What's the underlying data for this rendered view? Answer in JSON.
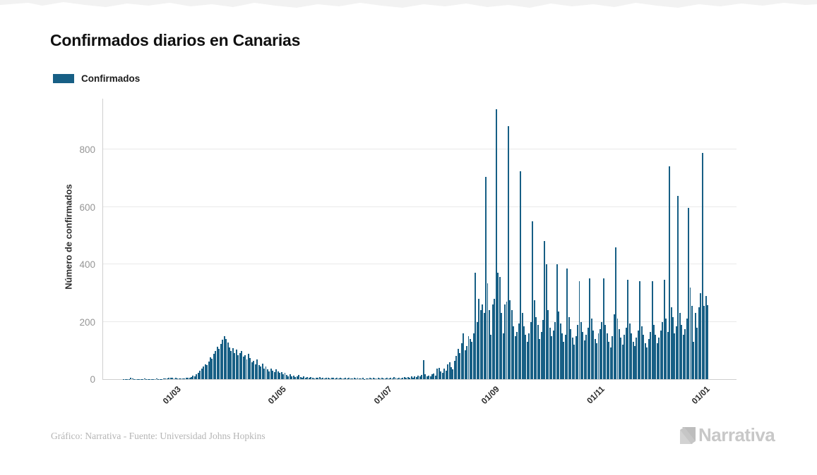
{
  "title": "Confirmados diarios en Canarias",
  "legend": {
    "label": "Confirmados"
  },
  "y_axis": {
    "label": "Número de confirmados"
  },
  "footer": {
    "credit": "Gráfico: Narrativa - Fuente: Universidad Johns Hopkins"
  },
  "logo": {
    "text": "Narrativa"
  },
  "colors": {
    "bar": "#175f85",
    "grid": "#e9e9e9",
    "axis": "#cfcfcf",
    "tick_text": "#959595",
    "x_tick_text": "#2b2b2b",
    "title_text": "#101010",
    "footer_text": "#b5b5b5",
    "logo_text": "#c8c8c8"
  },
  "chart_data": {
    "type": "bar",
    "title": "Confirmados diarios en Canarias",
    "xlabel": "",
    "ylabel": "Número de confirmados",
    "series_name": "Confirmados",
    "ylim": [
      0,
      977
    ],
    "grid": "horizontal",
    "legend_position": "top-left",
    "frequency": "daily",
    "start_date": "2020-01-28",
    "y_ticks": [
      0,
      200,
      400,
      600,
      800
    ],
    "x_tick_labels": [
      "01/03",
      "01/05",
      "01/07",
      "01/09",
      "01/11",
      "01/01"
    ],
    "x_tick_day_indices": [
      33,
      94,
      155,
      217,
      278,
      339
    ],
    "values": [
      0,
      0,
      0,
      1,
      1,
      1,
      1,
      4,
      2,
      1,
      1,
      1,
      1,
      1,
      1,
      2,
      1,
      1,
      1,
      1,
      1,
      1,
      2,
      1,
      1,
      1,
      2,
      3,
      2,
      4,
      5,
      4,
      3,
      4,
      2,
      3,
      2,
      2,
      3,
      5,
      4,
      6,
      8,
      12,
      10,
      16,
      22,
      30,
      38,
      45,
      52,
      48,
      62,
      75,
      70,
      88,
      98,
      112,
      105,
      122,
      138,
      150,
      140,
      128,
      110,
      98,
      108,
      92,
      102,
      84,
      90,
      99,
      78,
      84,
      68,
      88,
      74,
      58,
      64,
      52,
      68,
      48,
      44,
      54,
      38,
      44,
      34,
      28,
      38,
      29,
      24,
      34,
      27,
      21,
      24,
      17,
      21,
      14,
      11,
      17,
      9,
      13,
      8,
      11,
      14,
      8,
      6,
      9,
      5,
      8,
      4,
      8,
      6,
      3,
      6,
      4,
      7,
      3,
      5,
      2,
      4,
      6,
      3,
      5,
      4,
      3,
      5,
      2,
      4,
      2,
      3,
      5,
      2,
      4,
      3,
      2,
      4,
      2,
      5,
      3,
      2,
      4,
      1,
      3,
      2,
      5,
      3,
      4,
      2,
      3,
      5,
      2,
      4,
      3,
      2,
      4,
      2,
      5,
      3,
      7,
      4,
      2,
      6,
      3,
      5,
      8,
      4,
      7,
      5,
      9,
      6,
      10,
      8,
      12,
      9,
      14,
      67,
      18,
      10,
      13,
      9,
      16,
      20,
      12,
      36,
      40,
      28,
      22,
      36,
      30,
      52,
      58,
      42,
      34,
      65,
      80,
      105,
      92,
      125,
      160,
      100,
      115,
      150,
      140,
      130,
      160,
      370,
      200,
      280,
      240,
      260,
      230,
      705,
      335,
      240,
      155,
      260,
      280,
      941,
      370,
      355,
      230,
      160,
      260,
      270,
      880,
      275,
      240,
      185,
      150,
      165,
      195,
      725,
      230,
      185,
      155,
      130,
      160,
      200,
      550,
      275,
      215,
      190,
      140,
      165,
      205,
      480,
      400,
      240,
      180,
      150,
      170,
      200,
      400,
      235,
      195,
      160,
      130,
      155,
      385,
      215,
      175,
      145,
      120,
      150,
      190,
      340,
      200,
      165,
      135,
      155,
      180,
      350,
      210,
      170,
      140,
      125,
      160,
      175,
      200,
      350,
      190,
      160,
      130,
      110,
      150,
      225,
      460,
      210,
      175,
      145,
      120,
      155,
      180,
      345,
      195,
      160,
      130,
      115,
      145,
      170,
      340,
      185,
      155,
      125,
      110,
      140,
      165,
      340,
      190,
      155,
      125,
      145,
      170,
      200,
      345,
      210,
      165,
      740,
      250,
      215,
      160,
      185,
      637,
      230,
      190,
      155,
      175,
      210,
      597,
      320,
      255,
      130,
      230,
      180,
      250,
      300,
      787,
      255,
      290,
      258
    ]
  }
}
